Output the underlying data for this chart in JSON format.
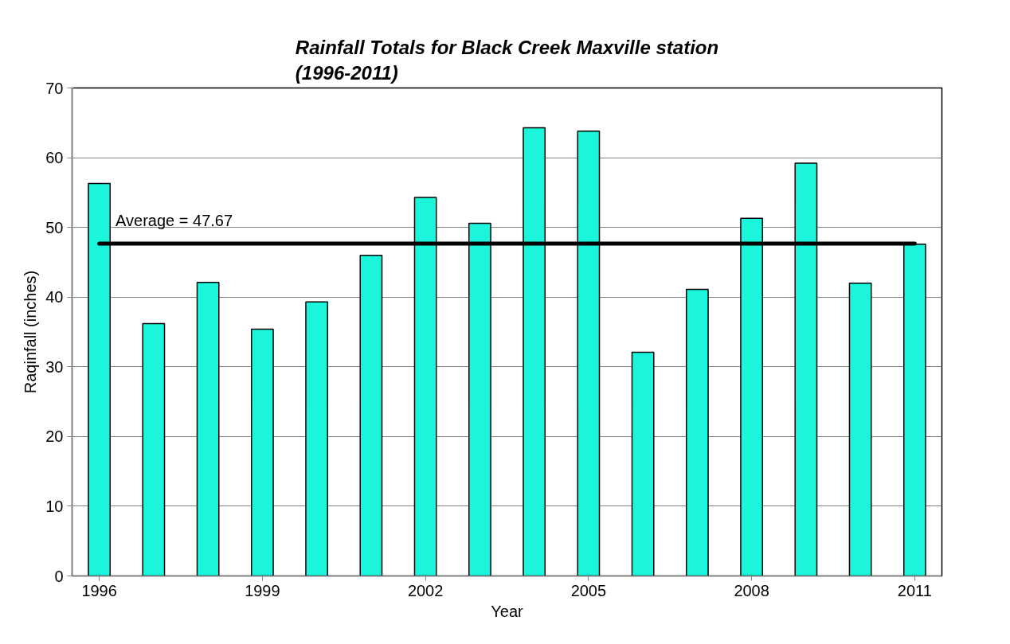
{
  "chart_data": {
    "type": "bar",
    "title": "Rainfall Totals for Black Creek Maxville station\n(1996-2011)",
    "xlabel": "Year",
    "ylabel": "Raqinfall (inches)",
    "categories": [
      "1996",
      null,
      null,
      "1999",
      null,
      null,
      "2002",
      null,
      null,
      "2005",
      null,
      null,
      "2008",
      null,
      null,
      "2011"
    ],
    "values": [
      56.3,
      36.2,
      42.1,
      35.4,
      39.3,
      46.0,
      54.3,
      50.6,
      64.3,
      63.8,
      32.1,
      41.1,
      51.3,
      59.2,
      42.0,
      47.6
    ],
    "color": "#1af5db",
    "ylim": [
      0,
      70
    ],
    "yticks": [
      0,
      10,
      20,
      30,
      40,
      50,
      60,
      70
    ],
    "grid": "y",
    "ref_lines": [
      {
        "axis": "y",
        "value": 47.67,
        "label": "Average = 47.67",
        "color": "#000000"
      }
    ]
  }
}
